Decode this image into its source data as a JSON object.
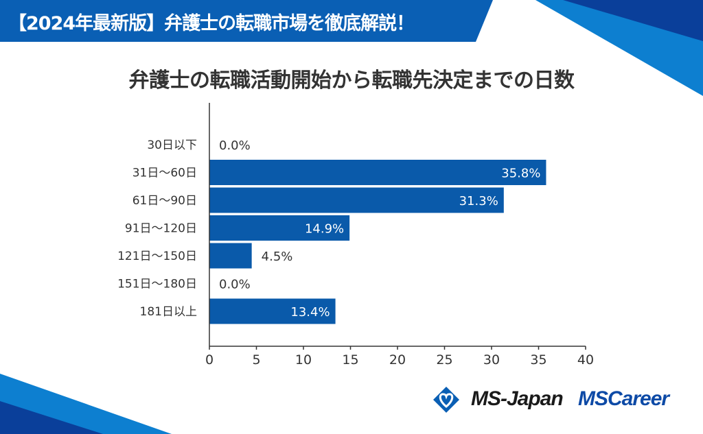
{
  "header": {
    "banner": "【2024年最新版】弁護士の転職市場を徹底解説！"
  },
  "colors": {
    "bar": "#0a5aaa",
    "banner": "#0a5fb4",
    "axis": "#333333"
  },
  "logos": {
    "ms_japan": "MS-Japan",
    "ms_career": "MSCareer"
  },
  "chart_data": {
    "type": "bar",
    "orientation": "horizontal",
    "title": "弁護士の転職活動開始から転職先決定までの日数",
    "categories": [
      "30日以下",
      "31日〜60日",
      "61日〜90日",
      "91日〜120日",
      "121日〜150日",
      "151日〜180日",
      "181日以上"
    ],
    "values": [
      0.0,
      35.8,
      31.3,
      14.9,
      4.5,
      0.0,
      13.4
    ],
    "labels": [
      "0.0%",
      "35.8%",
      "31.3%",
      "14.9%",
      "4.5%",
      "0.0%",
      "13.4%"
    ],
    "xlim": [
      0,
      40
    ],
    "xticks": [
      "0",
      "5",
      "10",
      "15",
      "20",
      "25",
      "30",
      "35",
      "40"
    ],
    "xlabel": "",
    "ylabel": "",
    "grid": false
  }
}
